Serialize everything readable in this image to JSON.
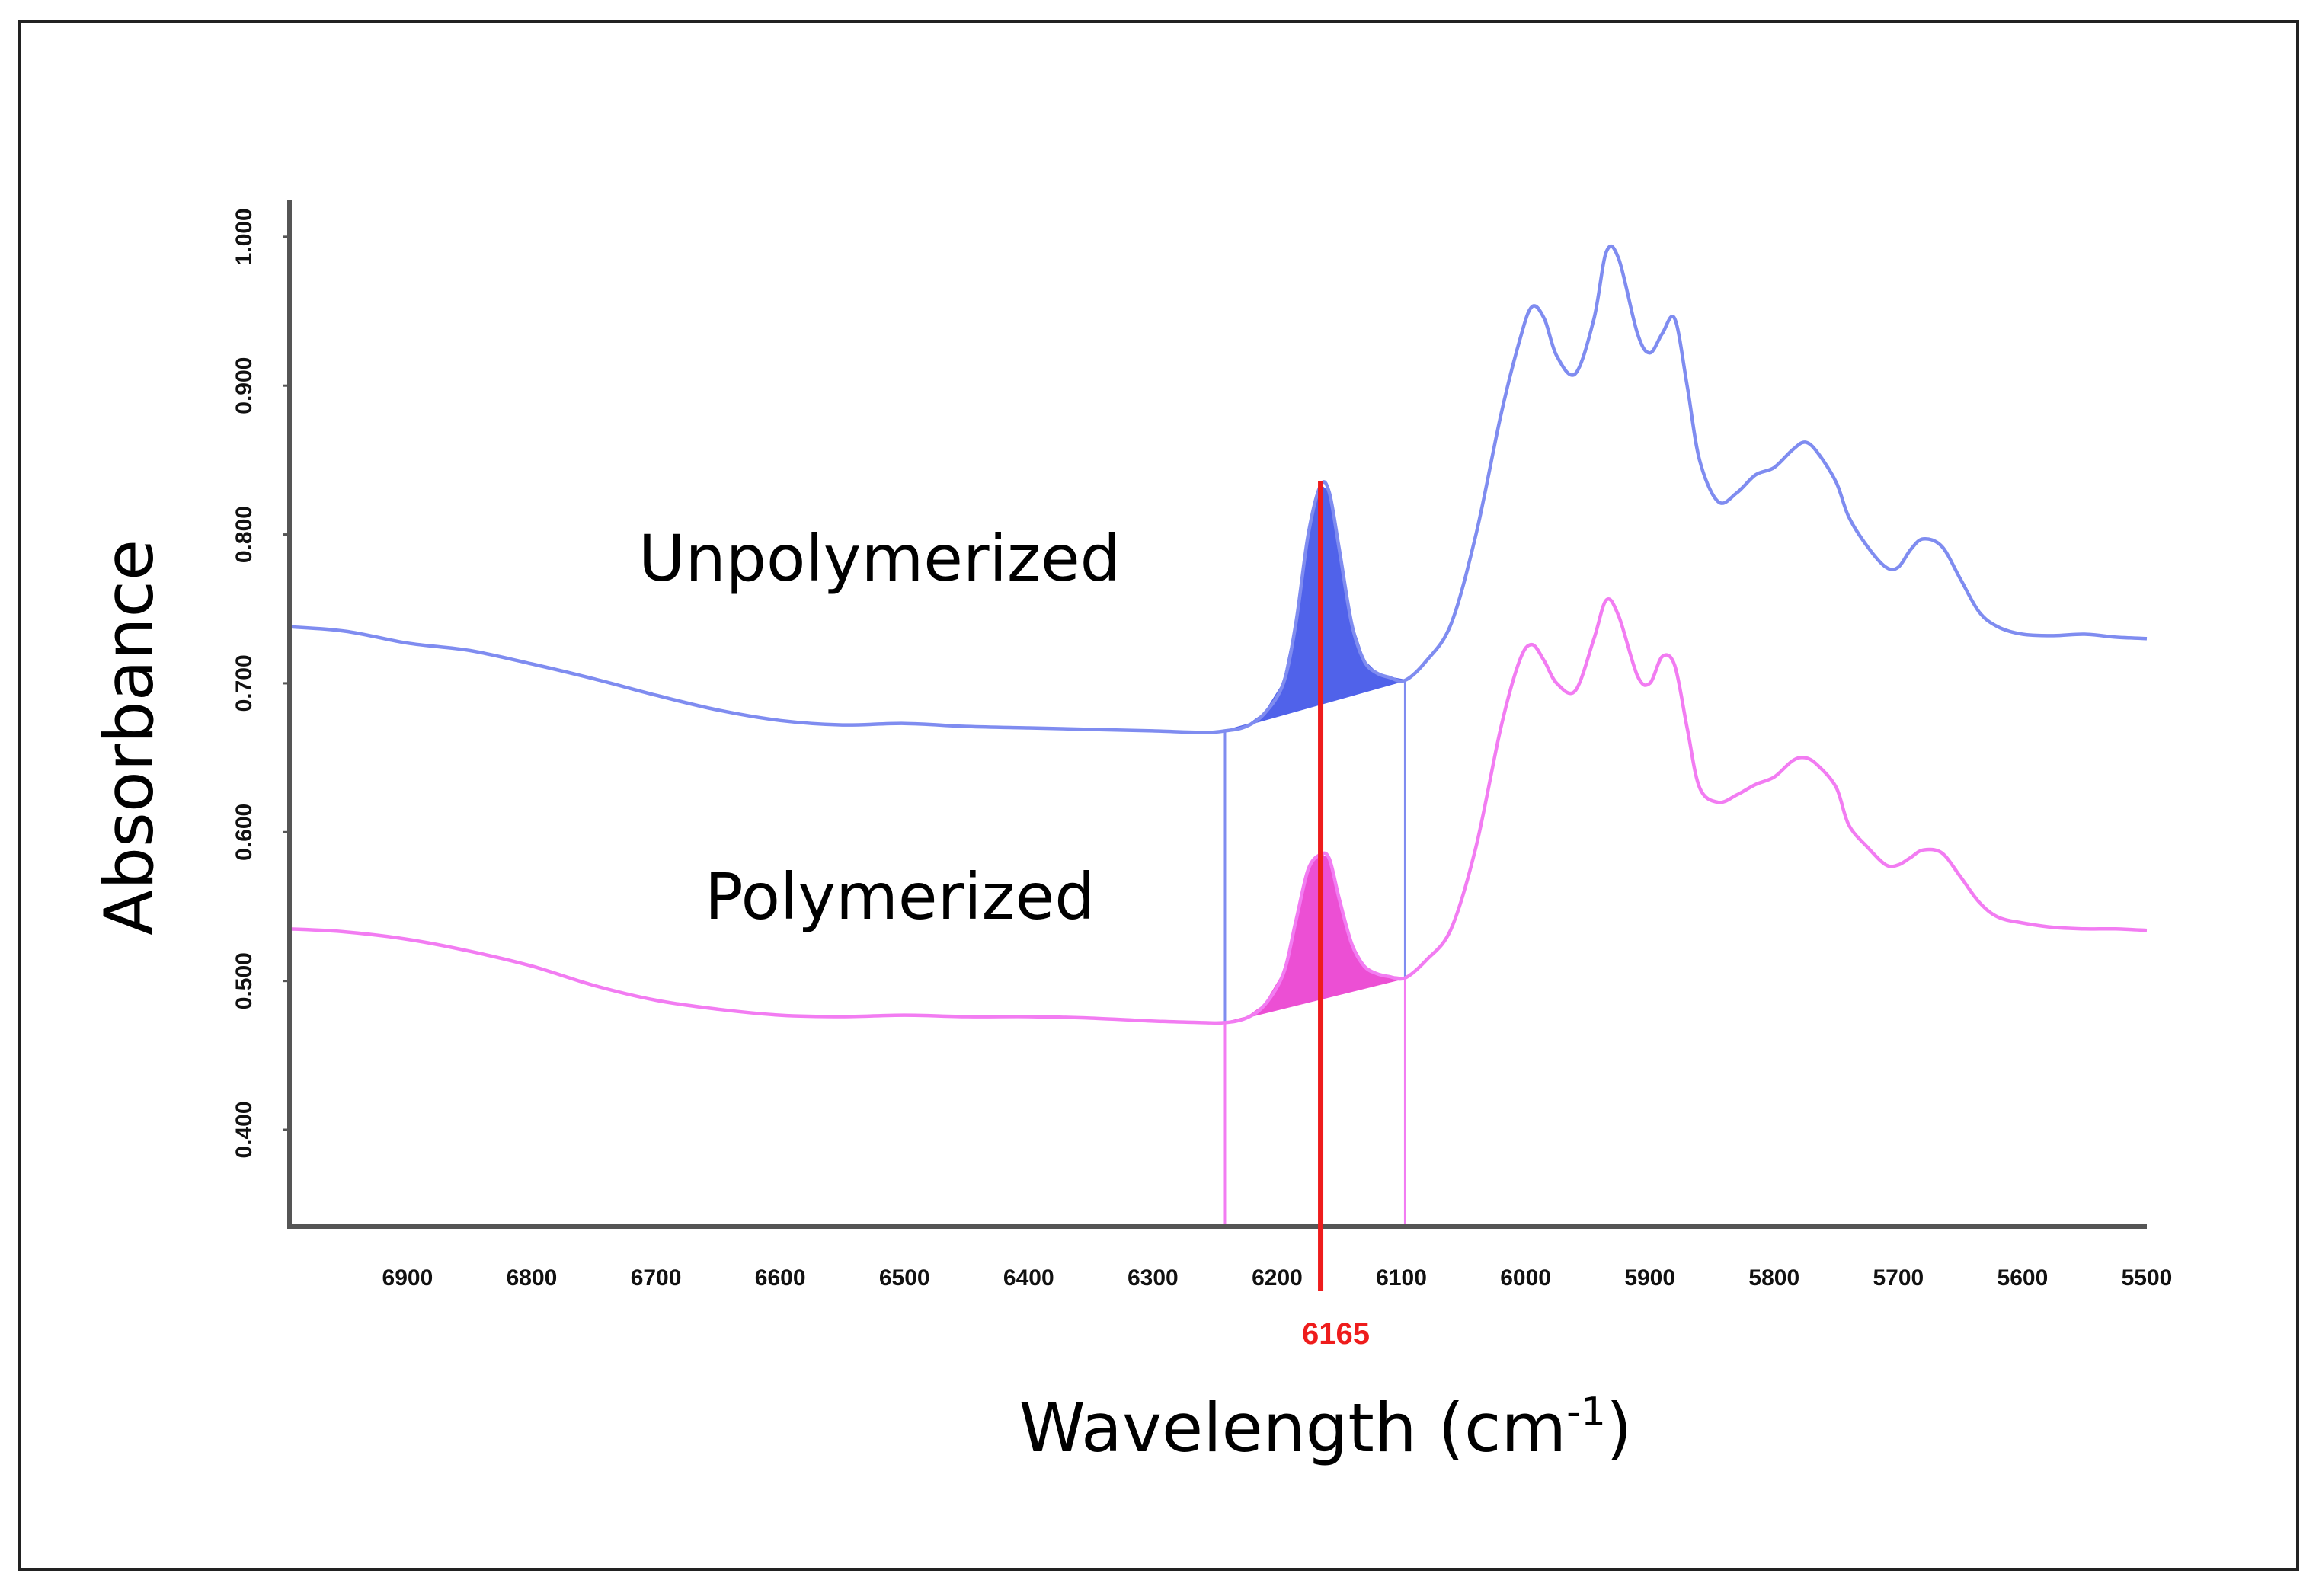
{
  "chart_data": {
    "type": "line",
    "title": "",
    "xlabel": "Wavelength (cm",
    "xlabel_sup": "-1",
    "xlabel_close": ")",
    "ylabel": "Absorbance",
    "xlim": [
      6995,
      5500
    ],
    "ylim": [
      0.335,
      1.025
    ],
    "x_ticks": [
      "6900",
      "6800",
      "6700",
      "6600",
      "6500",
      "6400",
      "6300",
      "6200",
      "6100",
      "6000",
      "5900",
      "5800",
      "5700",
      "5600",
      "5500"
    ],
    "y_ticks": [
      "0.400",
      "0.500",
      "0.600",
      "0.700",
      "0.800",
      "0.900",
      "1.000"
    ],
    "marker": {
      "x": 6165,
      "label": "6165",
      "color": "#ee1c1c"
    },
    "integration_bounds": [
      6242,
      6097
    ],
    "series": [
      {
        "name": "Unpolymerized",
        "color": "#7f8cf0",
        "fill": "#5062ea",
        "x": [
          6995,
          6950,
          6900,
          6850,
          6800,
          6750,
          6700,
          6650,
          6600,
          6550,
          6500,
          6450,
          6400,
          6350,
          6300,
          6260,
          6242,
          6225,
          6210,
          6195,
          6185,
          6175,
          6165,
          6158,
          6150,
          6140,
          6130,
          6120,
          6110,
          6097,
          6080,
          6060,
          6040,
          6020,
          6005,
          5995,
          5985,
          5975,
          5960,
          5945,
          5935,
          5925,
          5910,
          5900,
          5890,
          5880,
          5870,
          5860,
          5845,
          5830,
          5815,
          5800,
          5785,
          5775,
          5765,
          5750,
          5740,
          5725,
          5710,
          5700,
          5690,
          5680,
          5665,
          5650,
          5635,
          5620,
          5600,
          5575,
          5550,
          5525,
          5500
        ],
        "y": [
          0.738,
          0.735,
          0.727,
          0.722,
          0.713,
          0.703,
          0.692,
          0.682,
          0.675,
          0.672,
          0.673,
          0.671,
          0.67,
          0.669,
          0.668,
          0.667,
          0.668,
          0.671,
          0.68,
          0.7,
          0.74,
          0.8,
          0.833,
          0.828,
          0.79,
          0.74,
          0.715,
          0.707,
          0.704,
          0.702,
          0.715,
          0.74,
          0.8,
          0.88,
          0.93,
          0.953,
          0.945,
          0.92,
          0.908,
          0.945,
          0.99,
          0.985,
          0.935,
          0.922,
          0.935,
          0.945,
          0.9,
          0.85,
          0.822,
          0.828,
          0.84,
          0.845,
          0.857,
          0.862,
          0.855,
          0.835,
          0.812,
          0.792,
          0.778,
          0.778,
          0.79,
          0.797,
          0.792,
          0.77,
          0.748,
          0.738,
          0.733,
          0.732,
          0.733,
          0.731,
          0.73
        ]
      },
      {
        "name": "Polymerized",
        "color": "#f27cf2",
        "fill": "#ec4fd4",
        "x": [
          6995,
          6950,
          6900,
          6850,
          6800,
          6750,
          6700,
          6650,
          6600,
          6550,
          6500,
          6450,
          6400,
          6350,
          6300,
          6260,
          6242,
          6225,
          6210,
          6195,
          6185,
          6175,
          6165,
          6158,
          6150,
          6140,
          6130,
          6120,
          6110,
          6097,
          6080,
          6060,
          6040,
          6020,
          6005,
          5995,
          5985,
          5975,
          5960,
          5945,
          5935,
          5925,
          5910,
          5900,
          5890,
          5880,
          5870,
          5860,
          5845,
          5830,
          5815,
          5800,
          5785,
          5775,
          5765,
          5750,
          5740,
          5725,
          5710,
          5700,
          5690,
          5680,
          5665,
          5650,
          5635,
          5620,
          5600,
          5575,
          5550,
          5525,
          5500
        ],
        "y": [
          0.535,
          0.533,
          0.528,
          0.52,
          0.51,
          0.497,
          0.487,
          0.481,
          0.477,
          0.476,
          0.477,
          0.476,
          0.476,
          0.475,
          0.473,
          0.472,
          0.472,
          0.475,
          0.484,
          0.505,
          0.54,
          0.575,
          0.585,
          0.582,
          0.555,
          0.525,
          0.51,
          0.505,
          0.503,
          0.502,
          0.514,
          0.535,
          0.59,
          0.67,
          0.715,
          0.726,
          0.715,
          0.7,
          0.695,
          0.73,
          0.756,
          0.745,
          0.705,
          0.7,
          0.718,
          0.712,
          0.67,
          0.63,
          0.62,
          0.625,
          0.632,
          0.637,
          0.648,
          0.65,
          0.645,
          0.63,
          0.605,
          0.59,
          0.578,
          0.578,
          0.583,
          0.588,
          0.586,
          0.57,
          0.553,
          0.543,
          0.539,
          0.536,
          0.535,
          0.535,
          0.534
        ]
      }
    ]
  }
}
